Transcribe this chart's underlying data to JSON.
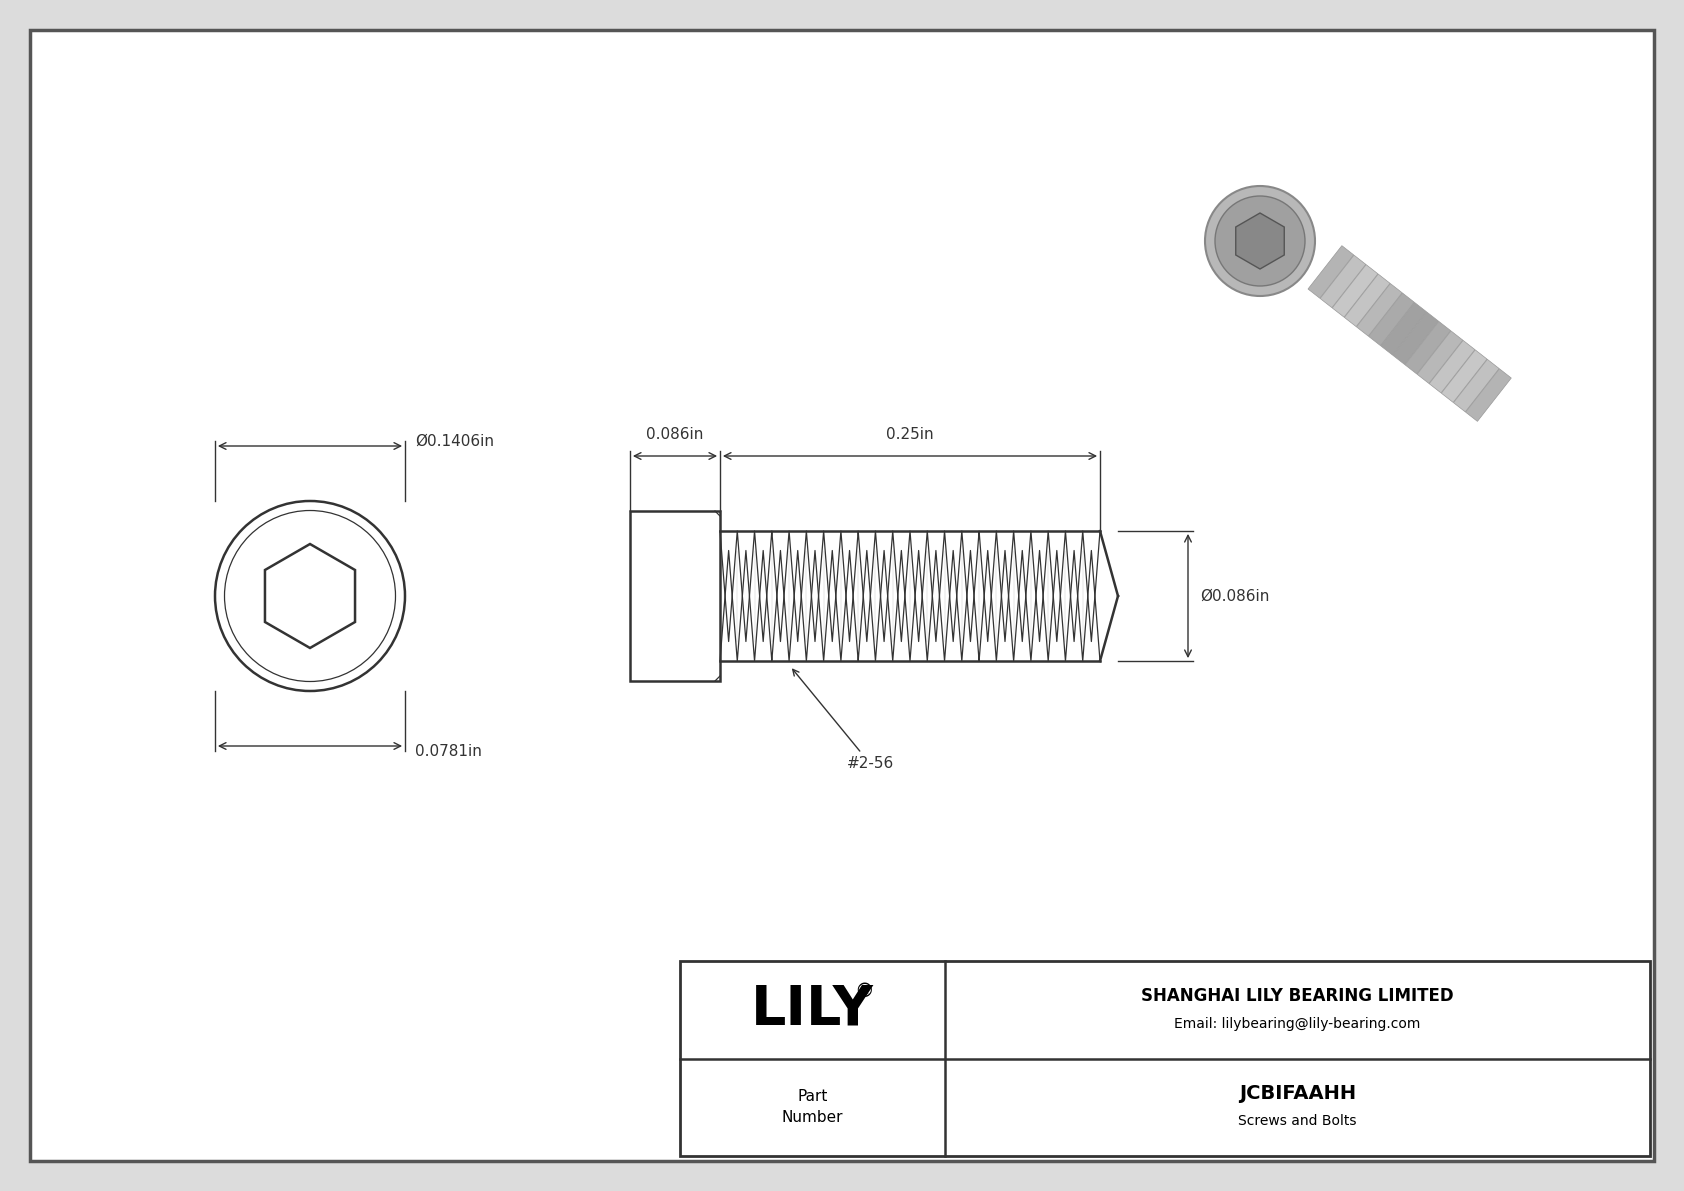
{
  "bg_color": "#dcdcdc",
  "drawing_bg": "#ffffff",
  "border_color": "#555555",
  "line_color": "#333333",
  "dim_color": "#333333",
  "title_company": "SHANGHAI LILY BEARING LIMITED",
  "title_email": "Email: lilybearing@lily-bearing.com",
  "part_number": "JCBIFAAHH",
  "part_category": "Screws and Bolts",
  "brand": "LILY",
  "brand_reg": "®",
  "dim_head_length": "0.086in",
  "dim_shaft_length": "0.25in",
  "dim_shaft_dia": "Ø0.086in",
  "dim_head_dia": "Ø0.1406in",
  "dim_head_dia_front": "0.0781in",
  "thread_label": "#2-56"
}
